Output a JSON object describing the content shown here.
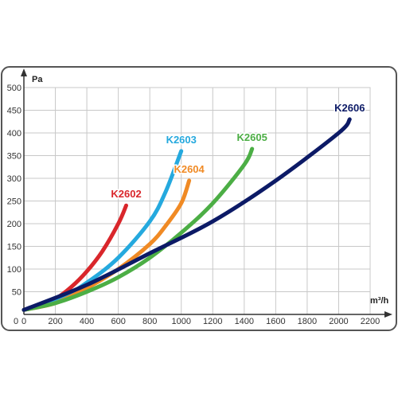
{
  "chart_data": {
    "type": "line",
    "ylabel": "Pa",
    "xlabel": "m³/h",
    "xlim": [
      0,
      2200
    ],
    "ylim": [
      0,
      500
    ],
    "x_ticks": [
      "0",
      "200",
      "400",
      "600",
      "800",
      "1000",
      "1200",
      "1400",
      "1600",
      "1800",
      "2000",
      "2200"
    ],
    "y_ticks": [
      "50",
      "100",
      "150",
      "200",
      "250",
      "300",
      "350",
      "400",
      "450",
      "500"
    ],
    "grid": true,
    "series": [
      {
        "name": "K2602",
        "color": "#d9262b",
        "x": [
          0,
          100,
          200,
          300,
          400,
          500,
          600,
          650
        ],
        "y": [
          10,
          19,
          34,
          60,
          95,
          140,
          200,
          240
        ]
      },
      {
        "name": "K2603",
        "color": "#25a9de",
        "x": [
          0,
          200,
          400,
          600,
          800,
          900,
          1000
        ],
        "y": [
          10,
          28,
          70,
          125,
          205,
          270,
          360
        ]
      },
      {
        "name": "K2604",
        "color": "#f08a24",
        "x": [
          0,
          200,
          400,
          600,
          800,
          900,
          1000,
          1050
        ],
        "y": [
          10,
          25,
          58,
          100,
          155,
          195,
          245,
          295
        ]
      },
      {
        "name": "K2605",
        "color": "#4cae45",
        "x": [
          0,
          200,
          400,
          600,
          800,
          1000,
          1200,
          1400,
          1450
        ],
        "y": [
          10,
          25,
          50,
          82,
          125,
          180,
          245,
          330,
          365
        ]
      },
      {
        "name": "K2606",
        "color": "#0c1a66",
        "x": [
          0,
          400,
          800,
          1200,
          1600,
          2000,
          2070
        ],
        "y": [
          10,
          65,
          135,
          205,
          295,
          400,
          430
        ]
      }
    ]
  }
}
